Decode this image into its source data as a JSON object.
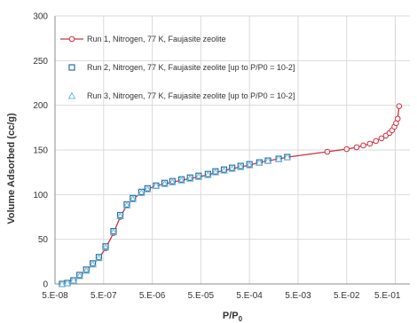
{
  "chart_data": {
    "type": "scatter",
    "title": "",
    "xlabel_main": "P/P",
    "xlabel_sub": "0",
    "ylabel": "Volume Adsorbed (cc/g)",
    "x_scale": "log",
    "xlim": [
      5e-08,
      1
    ],
    "ylim": [
      0,
      300
    ],
    "grid": true,
    "legend_position": "top-left",
    "y_ticks": [
      0,
      50,
      100,
      150,
      200,
      250,
      300
    ],
    "x_ticks": [
      {
        "value": 5e-08,
        "label": "5.E-08"
      },
      {
        "value": 5e-07,
        "label": "5.E-07"
      },
      {
        "value": 5e-06,
        "label": "5.E-06"
      },
      {
        "value": 5e-05,
        "label": "5.E-05"
      },
      {
        "value": 0.0005,
        "label": "5.E-04"
      },
      {
        "value": 0.005,
        "label": "5.E-03"
      },
      {
        "value": 0.05,
        "label": "5.E-02"
      },
      {
        "value": 0.5,
        "label": "5.E-01"
      }
    ],
    "series": [
      {
        "name": "Run 1, Nitrogen, 77 K, Faujasite zeolite",
        "style": "line-circle",
        "color": "#d03040",
        "points": [
          [
            7e-08,
            0
          ],
          [
            9e-08,
            1
          ],
          [
            1.2e-07,
            4
          ],
          [
            1.6e-07,
            9
          ],
          [
            2.2e-07,
            15
          ],
          [
            3e-07,
            22
          ],
          [
            4e-07,
            29
          ],
          [
            5.5e-07,
            40
          ],
          [
            8e-07,
            57
          ],
          [
            1.1e-06,
            75
          ],
          [
            1.5e-06,
            88
          ],
          [
            2e-06,
            95
          ],
          [
            3e-06,
            102
          ],
          [
            4e-06,
            106
          ],
          [
            6e-06,
            110
          ],
          [
            9e-06,
            112
          ],
          [
            1.3e-05,
            114
          ],
          [
            2e-05,
            116
          ],
          [
            3e-05,
            118
          ],
          [
            4.5e-05,
            120
          ],
          [
            7e-05,
            122
          ],
          [
            0.0001,
            125
          ],
          [
            0.00015,
            127
          ],
          [
            0.00022,
            129
          ],
          [
            0.00033,
            131
          ],
          [
            0.0005,
            133
          ],
          [
            0.0008,
            136
          ],
          [
            0.0012,
            138
          ],
          [
            0.002,
            140
          ],
          [
            0.003,
            142
          ],
          [
            0.02,
            148
          ],
          [
            0.05,
            151
          ],
          [
            0.08,
            153
          ],
          [
            0.11,
            155
          ],
          [
            0.15,
            157
          ],
          [
            0.2,
            160
          ],
          [
            0.26,
            163
          ],
          [
            0.32,
            166
          ],
          [
            0.38,
            169
          ],
          [
            0.43,
            172
          ],
          [
            0.48,
            176
          ],
          [
            0.52,
            180
          ],
          [
            0.56,
            185
          ],
          [
            0.6,
            199
          ]
        ]
      },
      {
        "name": "Run 2, Nitrogen, 77 K, Faujasite zeolite [up to P/P0 = 10-2]",
        "style": "square",
        "color": "#2a6f9e",
        "points": [
          [
            7e-08,
            0
          ],
          [
            9e-08,
            1
          ],
          [
            1.2e-07,
            4
          ],
          [
            1.6e-07,
            10
          ],
          [
            2.2e-07,
            16
          ],
          [
            3e-07,
            23
          ],
          [
            4e-07,
            30
          ],
          [
            5.5e-07,
            42
          ],
          [
            8e-07,
            59
          ],
          [
            1.1e-06,
            77
          ],
          [
            1.5e-06,
            89
          ],
          [
            2e-06,
            96
          ],
          [
            3e-06,
            103
          ],
          [
            4e-06,
            107
          ],
          [
            6e-06,
            110
          ],
          [
            9e-06,
            113
          ],
          [
            1.3e-05,
            115
          ],
          [
            2e-05,
            117
          ],
          [
            3e-05,
            119
          ],
          [
            4.5e-05,
            121
          ],
          [
            7e-05,
            123
          ],
          [
            0.0001,
            126
          ],
          [
            0.00015,
            128
          ],
          [
            0.00022,
            130
          ],
          [
            0.00033,
            132
          ],
          [
            0.0005,
            134
          ],
          [
            0.0008,
            136
          ],
          [
            0.0012,
            138
          ],
          [
            0.002,
            140
          ],
          [
            0.003,
            142
          ]
        ]
      },
      {
        "name": "Run 3, Nitrogen, 77 K, Faujasite zeolite [up to P/P0 = 10-2]",
        "style": "triangle",
        "color": "#6fb8dc",
        "points": [
          [
            7e-08,
            0
          ],
          [
            9e-08,
            1
          ],
          [
            1.2e-07,
            4
          ],
          [
            1.6e-07,
            9
          ],
          [
            2.2e-07,
            15
          ],
          [
            3e-07,
            22
          ],
          [
            4e-07,
            29
          ],
          [
            5.5e-07,
            41
          ],
          [
            8e-07,
            58
          ],
          [
            1.1e-06,
            76
          ],
          [
            1.5e-06,
            88
          ],
          [
            2e-06,
            95
          ],
          [
            3e-06,
            102
          ],
          [
            4e-06,
            106
          ],
          [
            6e-06,
            110
          ],
          [
            9e-06,
            112
          ],
          [
            1.3e-05,
            114
          ],
          [
            2e-05,
            116
          ],
          [
            3e-05,
            118
          ],
          [
            4.5e-05,
            120
          ],
          [
            7e-05,
            122
          ],
          [
            0.0001,
            125
          ],
          [
            0.00015,
            127
          ],
          [
            0.00022,
            129
          ],
          [
            0.00033,
            131
          ],
          [
            0.0005,
            133
          ],
          [
            0.0008,
            136
          ],
          [
            0.0012,
            138
          ],
          [
            0.002,
            140
          ],
          [
            0.003,
            142
          ]
        ]
      }
    ]
  }
}
